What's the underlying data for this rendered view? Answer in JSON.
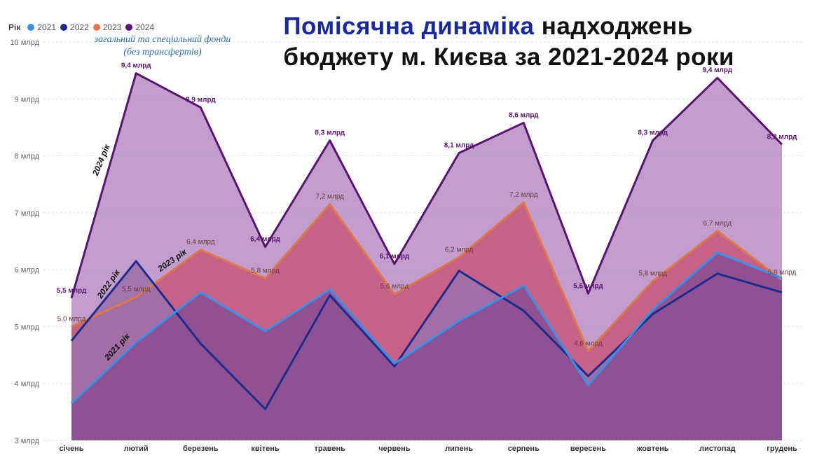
{
  "title": {
    "highlight": "Помісячна динаміка",
    "rest_line1": "надходжень",
    "line2": "бюджету м. Києва за 2021-2024 роки"
  },
  "subtitle": {
    "line1": "загальний та спеціальний фонди",
    "line2": "(без трансфертів)"
  },
  "legend": {
    "title": "Рік",
    "items": [
      {
        "label": "2021",
        "color": "#3b8fe6"
      },
      {
        "label": "2022",
        "color": "#1f2b8c"
      },
      {
        "label": "2023",
        "color": "#e0784a"
      },
      {
        "label": "2024",
        "color": "#5a1470"
      }
    ]
  },
  "chart_data": {
    "type": "area",
    "categories": [
      "січень",
      "лютий",
      "березень",
      "квітень",
      "травень",
      "червень",
      "липень",
      "серпень",
      "вересень",
      "жовтень",
      "листопад",
      "грудень"
    ],
    "y_ticks": [
      "3 млрд",
      "4 млрд",
      "5 млрд",
      "6 млрд",
      "7 млрд",
      "8 млрд",
      "9 млрд",
      "10 млрд"
    ],
    "ylim": [
      3,
      10
    ],
    "grid": true,
    "legend_position": "top-left",
    "series": [
      {
        "name": "2024",
        "color": "#5a1470",
        "fill": "#b98fc6",
        "values": [
          5.5,
          9.45,
          8.85,
          6.4,
          8.27,
          6.1,
          8.05,
          8.58,
          5.58,
          8.27,
          9.37,
          8.2
        ],
        "labels": [
          "5,5 млрд",
          "9,4 млрд",
          "8,9 млрд",
          "6,4 млрд",
          "8,3 млрд",
          "6,1 млрд",
          "8,1 млрд",
          "8,6 млрд",
          "5,6 млрд",
          "8,3 млрд",
          "9,4 млрд",
          "8,2 млрд"
        ],
        "side_label": "2024 рік"
      },
      {
        "name": "2023",
        "color": "#e0784a",
        "fill": "#c65a7e",
        "values": [
          5.0,
          5.52,
          6.35,
          5.85,
          7.15,
          5.57,
          6.22,
          7.18,
          4.57,
          5.8,
          6.68,
          5.82
        ],
        "labels": [
          "5,0 млрд",
          "5,5 млрд",
          "6,4 млрд",
          "5,8 млрд",
          "7,2 млрд",
          "5,6 млрд",
          "6,2 млрд",
          "7,2 млрд",
          "4,6 млрд",
          "5,8 млрд",
          "6,7 млрд",
          "5,8 млрд"
        ],
        "side_label": "2023 рік"
      },
      {
        "name": "2022",
        "color": "#1f2b8c",
        "fill": "#9d6fa8",
        "values": [
          4.75,
          6.15,
          4.7,
          3.55,
          5.55,
          4.3,
          5.98,
          5.28,
          4.13,
          5.22,
          5.93,
          5.6
        ],
        "side_label": "2022 рік"
      },
      {
        "name": "2021",
        "color": "#3b8fe6",
        "fill": "#8a4d92",
        "values": [
          3.65,
          4.72,
          5.6,
          4.92,
          5.65,
          4.35,
          5.1,
          5.72,
          3.97,
          5.3,
          6.3,
          5.85
        ],
        "side_label": "2021 рік"
      }
    ]
  }
}
